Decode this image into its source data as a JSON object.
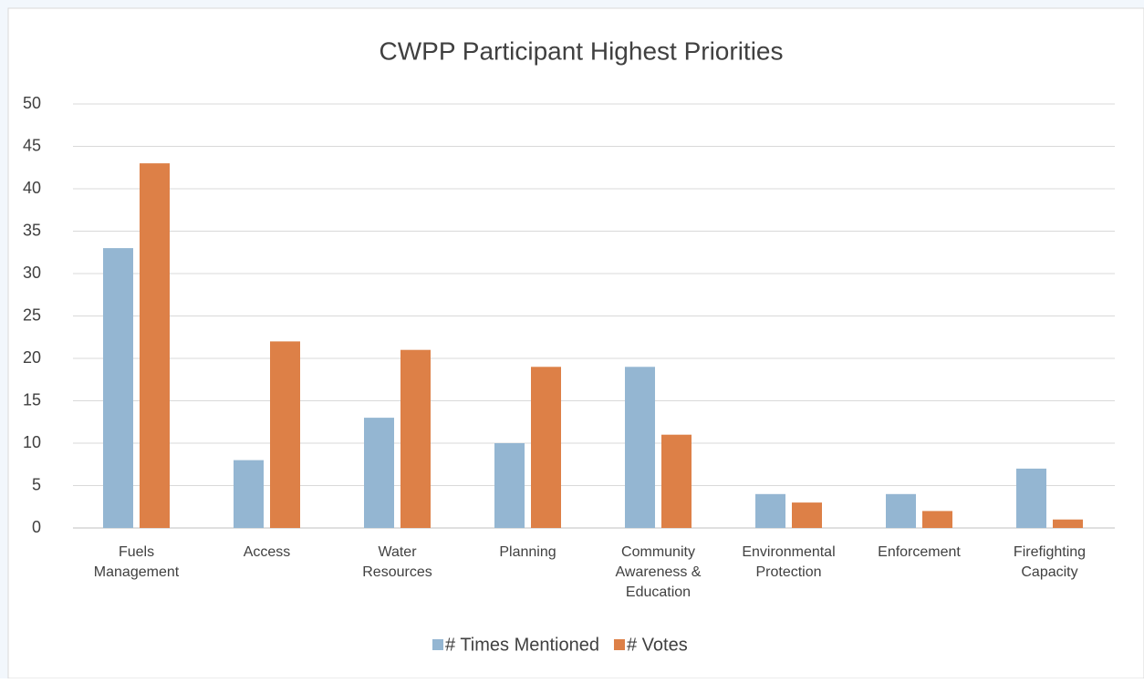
{
  "chart_data": {
    "type": "bar",
    "title": "CWPP Participant Highest Priorities",
    "categories": [
      "Fuels Management",
      "Access",
      "Water Resources",
      "Planning",
      "Community Awareness & Education",
      "Environmental Protection",
      "Enforcement",
      "Firefighting Capacity"
    ],
    "series": [
      {
        "name": "# Times Mentioned",
        "color": "#94b6d2",
        "values": [
          33,
          8,
          13,
          10,
          19,
          4,
          4,
          7
        ]
      },
      {
        "name": "# Votes",
        "color": "#dd8047",
        "values": [
          43,
          22,
          21,
          19,
          11,
          3,
          2,
          1
        ]
      }
    ],
    "ylim": [
      0,
      50
    ],
    "yticks": [
      0,
      5,
      10,
      15,
      20,
      25,
      30,
      35,
      40,
      45,
      50
    ],
    "grid": true,
    "legend": "bottom"
  }
}
